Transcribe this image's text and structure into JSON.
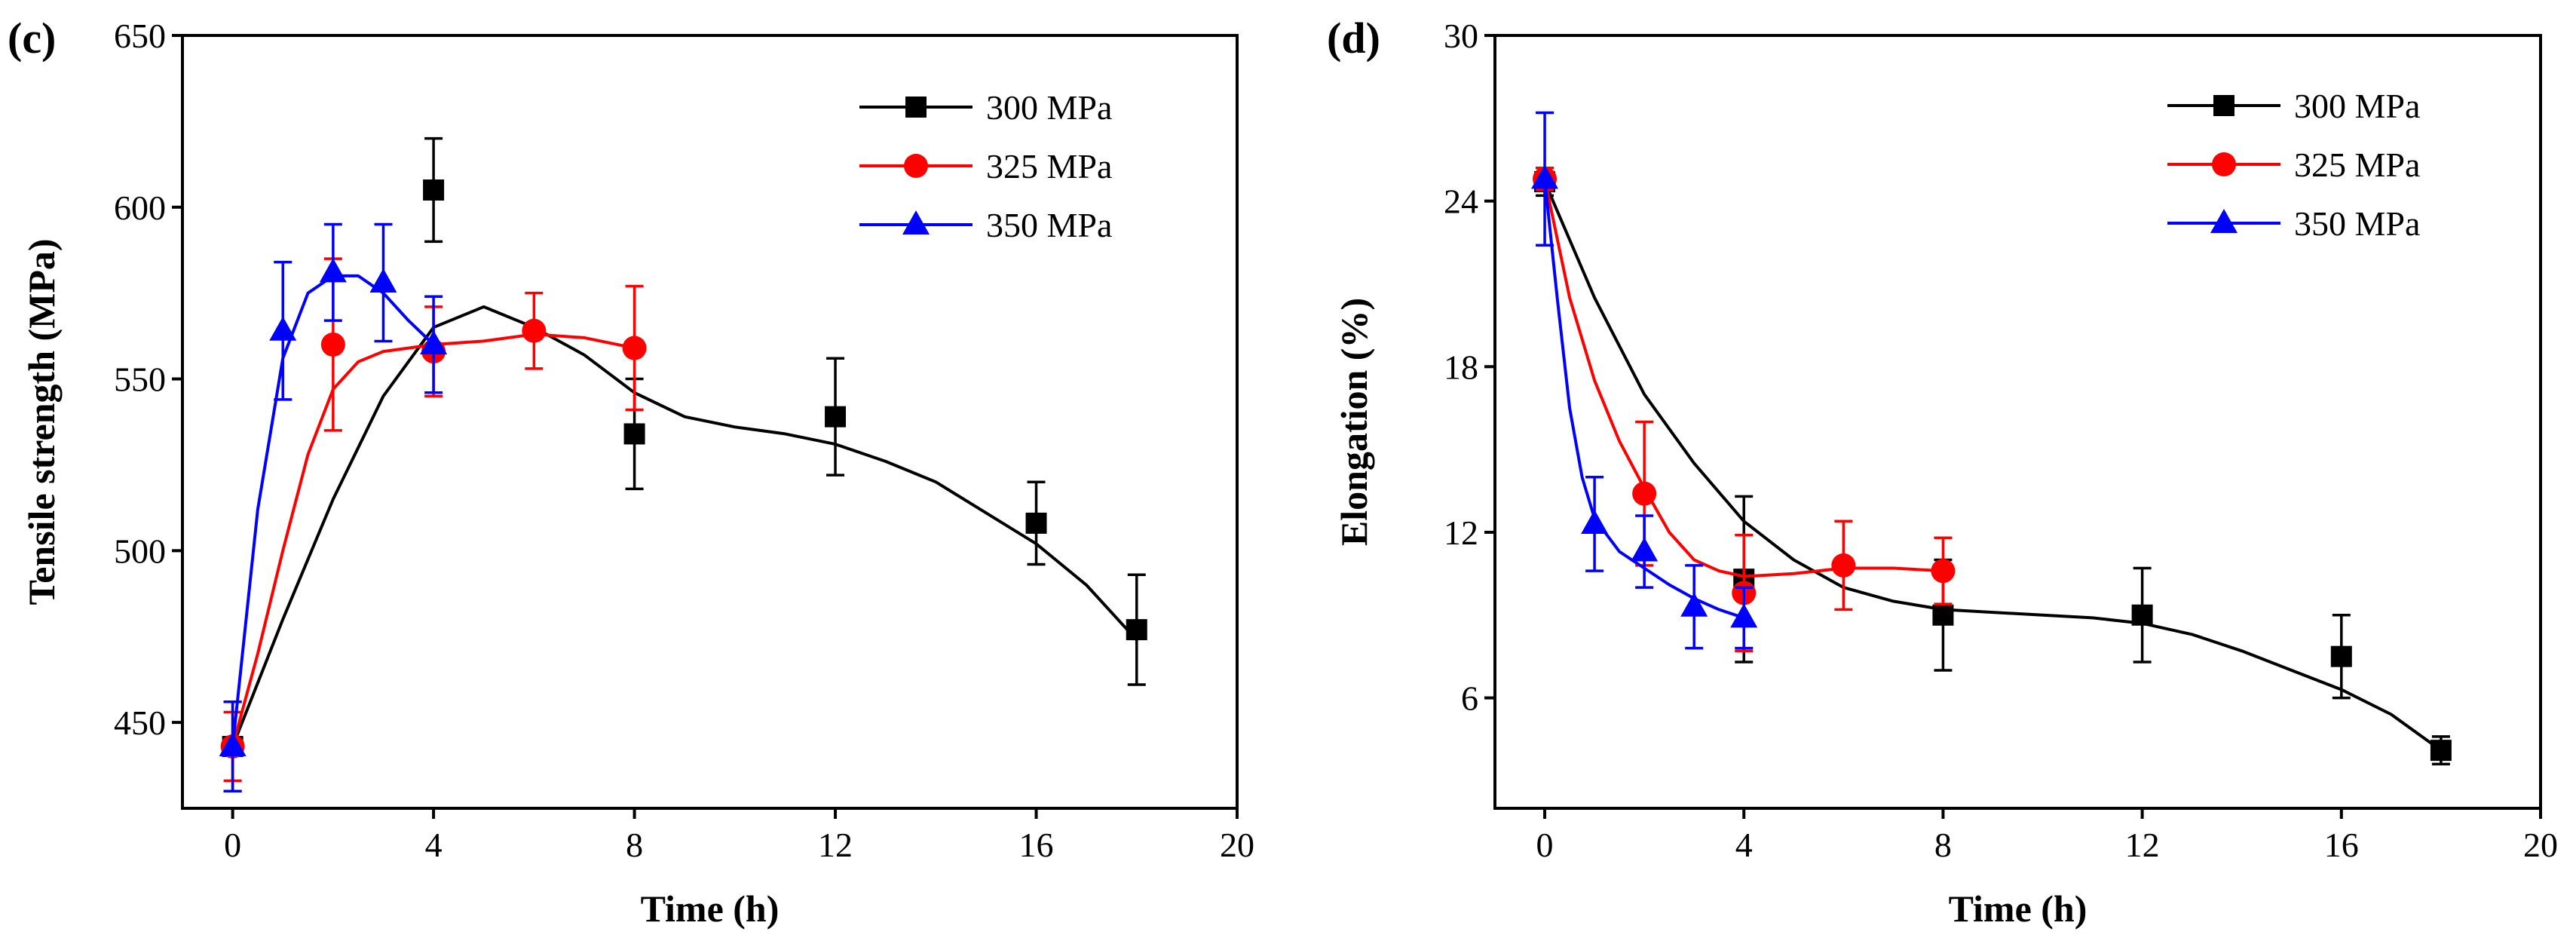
{
  "chart_data": [
    {
      "panel_label": "(c)",
      "type": "line",
      "xlabel": "Time (h)",
      "ylabel": "Tensile strength (MPa)",
      "xlim": [
        -1,
        20
      ],
      "ylim": [
        425,
        650
      ],
      "xticks": [
        0,
        4,
        8,
        12,
        16,
        20
      ],
      "yticks": [
        450,
        500,
        550,
        600,
        650
      ],
      "legend": "top-right",
      "series": [
        {
          "name": "300 MPa",
          "color": "#000000",
          "marker": "square",
          "x": [
            0,
            4,
            8,
            12,
            16,
            18
          ],
          "y": [
            443,
            605,
            534,
            539,
            508,
            477
          ],
          "err": [
            13,
            15,
            16,
            17,
            12,
            16
          ],
          "curve_x": [
            0,
            1,
            2,
            3,
            4,
            5,
            6,
            7,
            8,
            9,
            10,
            11,
            12,
            13,
            14,
            15,
            16,
            17,
            18
          ],
          "curve_y": [
            443,
            480,
            515,
            545,
            565,
            571,
            565,
            557,
            546,
            539,
            536,
            534,
            531,
            526,
            520,
            511,
            502,
            490,
            474
          ]
        },
        {
          "name": "325 MPa",
          "color": "#ff0000",
          "marker": "circle",
          "x": [
            0,
            2,
            4,
            6,
            8
          ],
          "y": [
            443,
            560,
            558,
            564,
            559
          ],
          "err": [
            10,
            25,
            13,
            11,
            18
          ],
          "curve_x": [
            0,
            0.5,
            1,
            1.5,
            2,
            2.5,
            3,
            3.5,
            4,
            5,
            6,
            7,
            8
          ],
          "curve_y": [
            443,
            470,
            500,
            528,
            547,
            555,
            558,
            559,
            560,
            561,
            563,
            562,
            559
          ]
        },
        {
          "name": "350 MPa",
          "color": "#0000ff",
          "marker": "triangle",
          "x": [
            0,
            1,
            2,
            3,
            4
          ],
          "y": [
            443,
            564,
            581,
            578,
            560
          ],
          "err": [
            13,
            20,
            14,
            17,
            14
          ],
          "curve_x": [
            0,
            0.5,
            1,
            1.5,
            2,
            2.5,
            3,
            3.5,
            4
          ],
          "curve_y": [
            443,
            512,
            556,
            575,
            580,
            580,
            575,
            567,
            560
          ]
        }
      ]
    },
    {
      "panel_label": "(d)",
      "type": "line",
      "xlabel": "Time (h)",
      "ylabel": "Elongation (%)",
      "xlim": [
        -1,
        20
      ],
      "ylim": [
        2,
        30
      ],
      "xticks": [
        0,
        4,
        8,
        12,
        16,
        20
      ],
      "yticks": [
        6,
        12,
        18,
        24,
        30
      ],
      "legend": "top-right",
      "series": [
        {
          "name": "300 MPa",
          "color": "#000000",
          "marker": "square",
          "x": [
            0,
            4,
            8,
            12,
            16,
            18
          ],
          "y": [
            24.7,
            10.3,
            9.0,
            9.0,
            7.5,
            4.1
          ],
          "err": [
            0.5,
            3.0,
            2.0,
            1.7,
            1.5,
            0.5
          ],
          "curve_x": [
            0,
            1,
            2,
            3,
            4,
            5,
            6,
            7,
            8,
            9,
            10,
            11,
            12,
            13,
            14,
            15,
            16,
            17,
            18
          ],
          "curve_y": [
            24.7,
            20.5,
            17.0,
            14.5,
            12.4,
            11.0,
            10.0,
            9.5,
            9.2,
            9.1,
            9.0,
            8.9,
            8.7,
            8.3,
            7.7,
            7.0,
            6.3,
            5.4,
            4.1
          ]
        },
        {
          "name": "325 MPa",
          "color": "#ff0000",
          "marker": "circle",
          "x": [
            0,
            2,
            4,
            6,
            8
          ],
          "y": [
            24.8,
            13.4,
            9.8,
            10.8,
            10.6
          ],
          "err": [
            0.4,
            2.6,
            2.1,
            1.6,
            1.2
          ],
          "curve_x": [
            0,
            0.5,
            1,
            1.5,
            2,
            2.5,
            3,
            3.5,
            4,
            5,
            6,
            7,
            8
          ],
          "curve_y": [
            24.8,
            20.5,
            17.5,
            15.3,
            13.6,
            12.0,
            11.0,
            10.6,
            10.4,
            10.5,
            10.7,
            10.7,
            10.6
          ]
        },
        {
          "name": "350 MPa",
          "color": "#0000ff",
          "marker": "triangle",
          "x": [
            0,
            1,
            2,
            3,
            4
          ],
          "y": [
            24.8,
            12.3,
            11.3,
            9.3,
            8.9
          ],
          "err": [
            2.4,
            1.7,
            1.3,
            1.5,
            1.1
          ],
          "curve_x": [
            0,
            0.25,
            0.5,
            0.75,
            1,
            1.5,
            2,
            2.5,
            3,
            3.5,
            4
          ],
          "curve_y": [
            24.8,
            20.5,
            16.5,
            14.0,
            12.5,
            11.3,
            10.7,
            10.1,
            9.6,
            9.2,
            8.9
          ]
        }
      ]
    }
  ]
}
